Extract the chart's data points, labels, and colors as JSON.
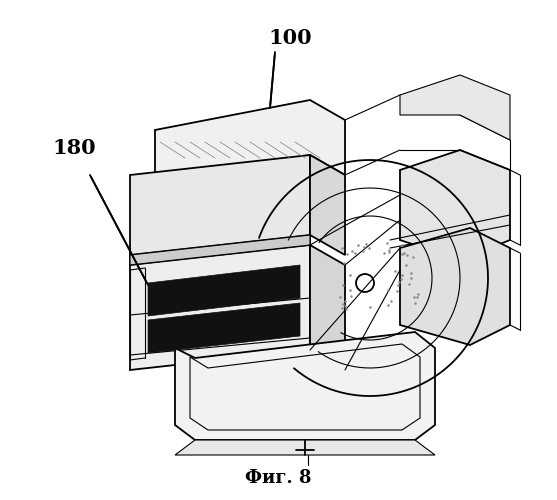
{
  "figure_label": "Фиг. 8",
  "label_100": "100",
  "label_180": "180",
  "background_color": "#ffffff",
  "line_color": "#000000",
  "figure_label_fontsize": 13,
  "annotation_fontsize": 15,
  "fig_width": 5.57,
  "fig_height": 5.0,
  "dpi": 100
}
